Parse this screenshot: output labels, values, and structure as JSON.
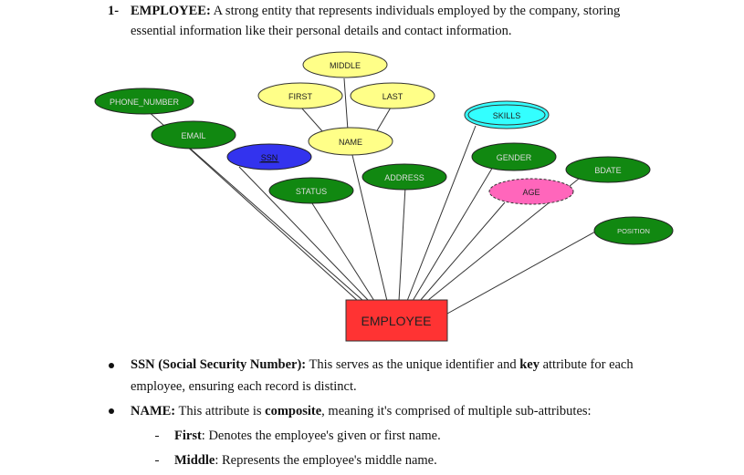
{
  "heading": {
    "number": "1-",
    "title": "EMPLOYEE:",
    "text_line1": " A strong entity that represents individuals employed by the company, storing",
    "text_line2": "essential information like their personal details and contact information."
  },
  "diagram": {
    "entity": "EMPLOYEE",
    "attributes": {
      "middle": "MIDDLE",
      "first": "FIRST",
      "last": "LAST",
      "phone_number": "PHONE_NUMBER",
      "skills": "SKILLS",
      "email": "EMAIL",
      "name": "NAME",
      "ssn": "SSN",
      "gender": "GENDER",
      "bdate": "BDATE",
      "address": "ADDRESS",
      "age": "AGE",
      "status": "STATUS",
      "position": "POSITION"
    },
    "colors": {
      "entity_fill": "#ff3333",
      "attribute_green": "#118811",
      "composite_yellow": "#ffff88",
      "multivalued_cyan": "#33ffff",
      "key_blue": "#3333ee",
      "derived_pink": "#ff66bb"
    }
  },
  "bullets": [
    {
      "term": "SSN (Social Security Number):",
      "text_a": " This serves as the unique identifier and ",
      "bold": "key",
      "text_b": " attribute for each",
      "line2": "employee, ensuring each record is distinct."
    },
    {
      "term": "NAME:",
      "text_a": " This attribute is ",
      "bold": "composite",
      "text_b": ", meaning it's comprised of multiple sub-attributes:"
    }
  ],
  "sub_bullets": [
    {
      "term": "First",
      "text": ": Denotes the employee's given or first name."
    },
    {
      "term": "Middle",
      "text": ": Represents the employee's middle name."
    }
  ]
}
